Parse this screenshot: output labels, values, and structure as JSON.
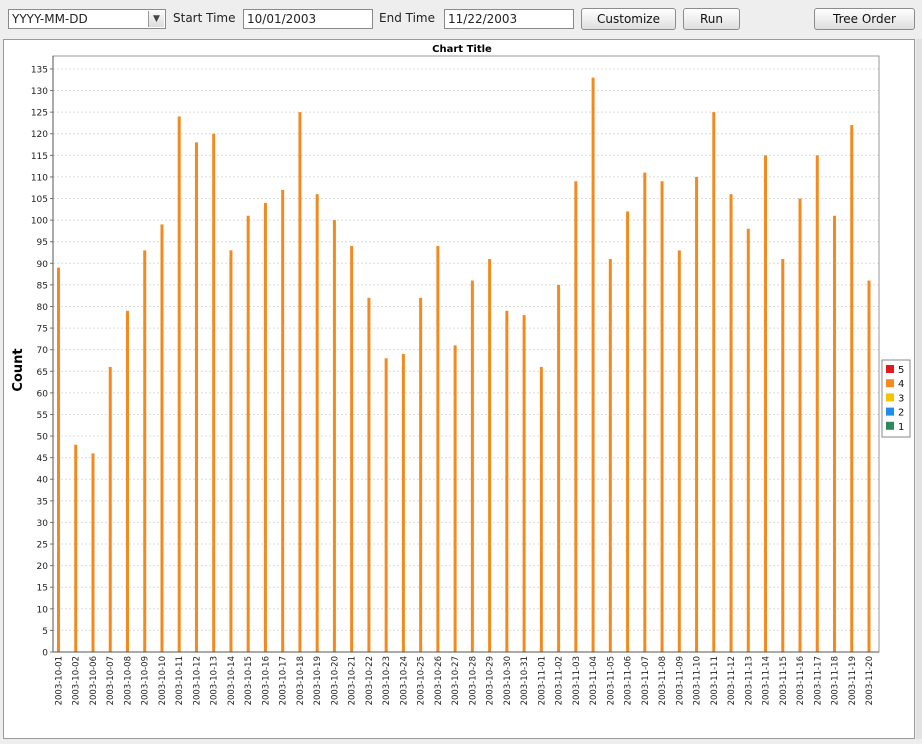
{
  "toolbar": {
    "date_format": "YYYY-MM-DD",
    "start_label": "Start Time",
    "start_value": "10/01/2003",
    "end_label": "End Time",
    "end_value": "11/22/2003",
    "customize_label": "Customize",
    "run_label": "Run",
    "tree_order_label": "Tree Order"
  },
  "chart_data": {
    "type": "bar",
    "title": "Chart Title",
    "xlabel": "",
    "ylabel": "Count",
    "ylim": [
      0,
      138
    ],
    "ytick_step": 5,
    "grid": true,
    "legend_placement": "right",
    "categories": [
      "2003-10-01",
      "2003-10-02",
      "2003-10-06",
      "2003-10-07",
      "2003-10-08",
      "2003-10-09",
      "2003-10-10",
      "2003-10-11",
      "2003-10-12",
      "2003-10-13",
      "2003-10-14",
      "2003-10-15",
      "2003-10-16",
      "2003-10-17",
      "2003-10-18",
      "2003-10-19",
      "2003-10-20",
      "2003-10-21",
      "2003-10-22",
      "2003-10-23",
      "2003-10-24",
      "2003-10-25",
      "2003-10-26",
      "2003-10-27",
      "2003-10-28",
      "2003-10-29",
      "2003-10-30",
      "2003-10-31",
      "2003-11-01",
      "2003-11-02",
      "2003-11-03",
      "2003-11-04",
      "2003-11-05",
      "2003-11-06",
      "2003-11-07",
      "2003-11-08",
      "2003-11-09",
      "2003-11-10",
      "2003-11-11",
      "2003-11-12",
      "2003-11-13",
      "2003-11-14",
      "2003-11-15",
      "2003-11-16",
      "2003-11-17",
      "2003-11-18",
      "2003-11-19",
      "2003-11-20"
    ],
    "series": [
      {
        "name": "5",
        "color": "#e31a1c",
        "values": [
          0,
          0,
          0,
          0,
          0,
          0,
          0,
          0,
          0,
          0,
          0,
          0,
          0,
          0,
          0,
          0,
          0,
          0,
          0,
          0,
          0,
          0,
          0,
          0,
          0,
          0,
          0,
          0,
          0,
          0,
          0,
          0,
          0,
          0,
          0,
          0,
          0,
          0,
          0,
          0,
          0,
          0,
          0,
          0,
          0,
          0,
          0,
          0
        ]
      },
      {
        "name": "4",
        "color": "#f28a1f",
        "values": [
          89,
          48,
          46,
          66,
          79,
          93,
          99,
          124,
          118,
          120,
          93,
          101,
          104,
          107,
          125,
          106,
          100,
          94,
          82,
          68,
          69,
          82,
          94,
          71,
          86,
          91,
          79,
          78,
          66,
          85,
          109,
          133,
          91,
          102,
          111,
          109,
          93,
          110,
          125,
          106,
          98,
          115,
          91,
          105,
          115,
          101,
          122,
          86
        ]
      },
      {
        "name": "3",
        "color": "#f5c400",
        "values": [
          0,
          0,
          0,
          0,
          0,
          0,
          0,
          0,
          0,
          0,
          0,
          0,
          0,
          0,
          0,
          0,
          0,
          0,
          0,
          0,
          0,
          0,
          0,
          0,
          0,
          0,
          0,
          0,
          0,
          0,
          0,
          0,
          0,
          0,
          0,
          0,
          0,
          0,
          0,
          0,
          0,
          0,
          0,
          0,
          0,
          0,
          0,
          0
        ]
      },
      {
        "name": "2",
        "color": "#1e8ee8",
        "values": [
          0,
          0,
          0,
          0,
          0,
          0,
          0,
          0,
          0,
          0,
          0,
          0,
          0,
          0,
          0,
          0,
          0,
          0,
          0,
          0,
          0,
          0,
          0,
          0,
          0,
          0,
          0,
          0,
          0,
          0,
          0,
          0,
          0,
          0,
          0,
          0,
          0,
          0,
          0,
          0,
          0,
          0,
          0,
          0,
          0,
          0,
          0,
          0
        ]
      },
      {
        "name": "1",
        "color": "#2e8b57",
        "values": [
          0,
          0,
          0,
          0,
          0,
          0,
          0,
          0,
          0,
          0,
          0,
          0,
          0,
          0,
          0,
          0,
          0,
          0,
          0,
          0,
          0,
          0,
          0,
          0,
          0,
          0,
          0,
          0,
          0,
          0,
          0,
          0,
          0,
          0,
          0,
          0,
          0,
          0,
          0,
          0,
          0,
          0,
          0,
          0,
          0,
          0,
          0,
          0
        ]
      }
    ]
  }
}
